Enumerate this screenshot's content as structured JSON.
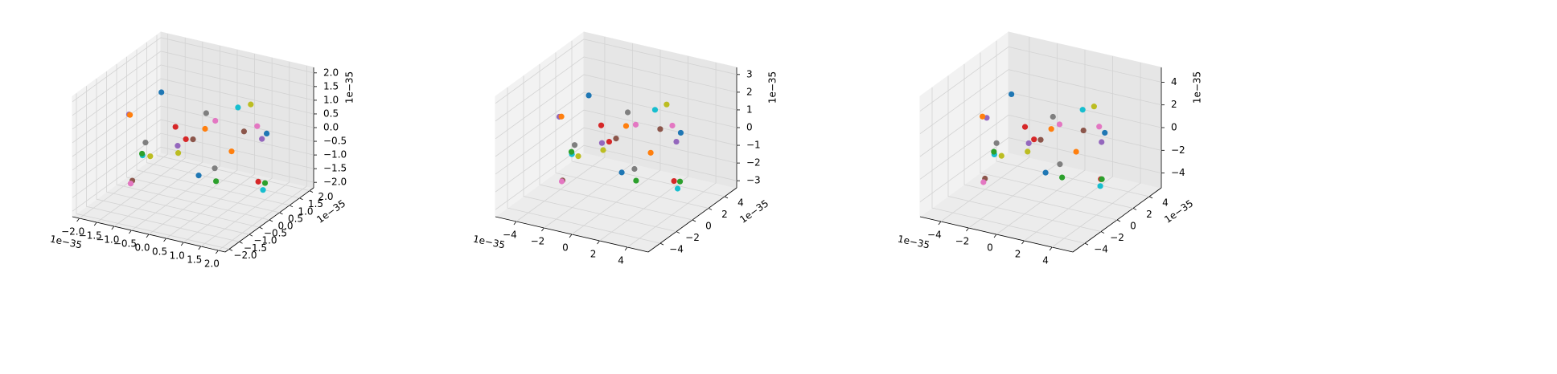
{
  "chart_data": [
    {
      "type": "scatter3d",
      "xlim": [
        -2.2,
        2.2
      ],
      "ylim": [
        -2.2,
        2.2
      ],
      "zlim": [
        -2.2,
        2.2
      ],
      "xticks": [
        {
          "value": -2,
          "label": "−2.0"
        },
        {
          "value": -1.5,
          "label": "−1.5"
        },
        {
          "value": -1,
          "label": "−1.0"
        },
        {
          "value": -0.5,
          "label": "−0.5"
        },
        {
          "value": 0,
          "label": "0.0"
        },
        0.5,
        {
          "value": 1,
          "label": "1.0"
        },
        1.5,
        {
          "value": 2,
          "label": "2.0"
        }
      ],
      "yticks": [
        {
          "value": -2,
          "label": "−2.0"
        },
        {
          "value": -1.5,
          "label": "−1.5"
        },
        {
          "value": -1,
          "label": "−1.0"
        },
        {
          "value": -0.5,
          "label": "−0.5"
        },
        {
          "value": 0,
          "label": "0.0"
        },
        0.5,
        {
          "value": 1,
          "label": "1.0"
        },
        1.5,
        {
          "value": 2,
          "label": "2.0"
        }
      ],
      "zticks": [
        {
          "value": -2,
          "label": "−2.0"
        },
        {
          "value": -1.5,
          "label": "−1.5"
        },
        {
          "value": -1,
          "label": "−1.0"
        },
        {
          "value": -0.5,
          "label": "−0.5"
        },
        {
          "value": 0,
          "label": "0.0"
        },
        0.5,
        {
          "value": 1,
          "label": "1.0"
        },
        1.5,
        {
          "value": 2,
          "label": "2.0"
        }
      ],
      "x_offset_text": "1e−35",
      "y_offset_text": "1e−35",
      "z_offset_text": "1e−35",
      "series": [
        {
          "color": "#1f77b4",
          "x": [
            -1.2,
            0.8,
            1.6
          ],
          "y": [
            0.5,
            -1.1,
            0.9
          ],
          "z": [
            1.2,
            -0.4,
            0.3
          ]
        },
        {
          "color": "#ff7f0e",
          "x": [
            0.3,
            -1.7,
            1.1
          ],
          "y": [
            1.4,
            -0.2,
            -1.3
          ],
          "z": [
            -1.0,
            0.6,
            1.5
          ]
        },
        {
          "color": "#2ca02c",
          "x": [
            -0.6,
            1.9,
            0.2
          ],
          "y": [
            -1.5,
            0.3,
            0.8
          ],
          "z": [
            0.2,
            -1.1,
            -1.8
          ]
        },
        {
          "color": "#d62728",
          "x": [
            1.3,
            -0.9,
            -0.1
          ],
          "y": [
            1.0,
            1.2,
            -0.7
          ],
          "z": [
            -1.6,
            -0.8,
            0.9
          ]
        },
        {
          "color": "#9467bd",
          "x": [
            -1.9,
            0.6,
            1.0
          ],
          "y": [
            0.1,
            -1.8,
            1.7
          ],
          "z": [
            0.4,
            1.0,
            -0.5
          ]
        },
        {
          "color": "#8c564b",
          "x": [
            0.0,
            -1.4,
            1.7
          ],
          "y": [
            0.0,
            -0.6,
            -0.4
          ],
          "z": [
            0.1,
            -1.5,
            1.1
          ]
        },
        {
          "color": "#e377c2",
          "x": [
            -0.4,
            1.5,
            -1.1
          ],
          "y": [
            1.8,
            0.6,
            -1.2
          ],
          "z": [
            -0.3,
            0.7,
            -1.2
          ]
        },
        {
          "color": "#7f7f7f",
          "x": [
            0.9,
            -0.3,
            -1.6
          ],
          "y": [
            -0.9,
            1.6,
            0.4
          ],
          "z": [
            1.8,
            -1.9,
            -0.7
          ]
        },
        {
          "color": "#bcbd22",
          "x": [
            -1.0,
            1.2,
            0.5
          ],
          "y": [
            -0.4,
            0.8,
            -1.6
          ],
          "z": [
            -0.6,
            1.3,
            0.6
          ]
        },
        {
          "color": "#17becf",
          "x": [
            0.6,
            -0.7,
            1.9
          ],
          "y": [
            1.2,
            -1.3,
            0.2
          ],
          "z": [
            0.8,
            0.0,
            -1.3
          ]
        }
      ]
    },
    {
      "type": "scatter3d",
      "xlim": [
        -5.5,
        5.5
      ],
      "ylim": [
        -5.5,
        5.5
      ],
      "zlim": [
        -3.4,
        3.4
      ],
      "xticks": [
        {
          "value": -4,
          "label": "−4"
        },
        {
          "value": -2,
          "label": "−2"
        },
        0,
        2,
        4
      ],
      "yticks": [
        {
          "value": -4,
          "label": "−4"
        },
        {
          "value": -2,
          "label": "−2"
        },
        0,
        2,
        4
      ],
      "zticks": [
        {
          "value": -3,
          "label": "−3"
        },
        {
          "value": -2,
          "label": "−2"
        },
        {
          "value": -1,
          "label": "−1"
        },
        0,
        1,
        2,
        3
      ],
      "x_offset_text": "1e−35",
      "y_offset_text": "1e−35",
      "z_offset_text": "1e−35",
      "series": [
        {
          "color": "#1f77b4",
          "x": [
            -2.6,
            1.8,
            3.5
          ],
          "y": [
            1.1,
            -2.4,
            2.0
          ],
          "z": [
            1.8,
            -0.6,
            0.5
          ]
        },
        {
          "color": "#ff7f0e",
          "x": [
            0.7,
            -3.7,
            2.4
          ],
          "y": [
            3.1,
            -0.4,
            -2.9
          ],
          "z": [
            -1.5,
            0.9,
            2.3
          ]
        },
        {
          "color": "#2ca02c",
          "x": [
            -1.3,
            4.2,
            0.4
          ],
          "y": [
            -3.3,
            0.7,
            1.8
          ],
          "z": [
            0.3,
            -1.7,
            -2.7
          ]
        },
        {
          "color": "#d62728",
          "x": [
            2.9,
            -2.0,
            -0.2
          ],
          "y": [
            2.2,
            2.6,
            -1.5
          ],
          "z": [
            -2.4,
            -1.2,
            1.4
          ]
        },
        {
          "color": "#9467bd",
          "x": [
            -4.2,
            1.3,
            2.2
          ],
          "y": [
            0.2,
            -4.0,
            3.7
          ],
          "z": [
            0.6,
            1.5,
            -0.8
          ]
        },
        {
          "color": "#8c564b",
          "x": [
            0.0,
            -3.1,
            3.7
          ],
          "y": [
            0.0,
            -1.3,
            -0.9
          ],
          "z": [
            0.2,
            -2.3,
            1.7
          ]
        },
        {
          "color": "#e377c2",
          "x": [
            -0.9,
            3.3,
            -2.4
          ],
          "y": [
            4.0,
            1.3,
            -2.6
          ],
          "z": [
            -0.5,
            1.1,
            -1.8
          ]
        },
        {
          "color": "#7f7f7f",
          "x": [
            2.0,
            -0.7,
            -3.5
          ],
          "y": [
            -2.0,
            3.5,
            0.9
          ],
          "z": [
            2.7,
            -2.8,
            -1.1
          ]
        },
        {
          "color": "#bcbd22",
          "x": [
            -2.2,
            2.6,
            1.1
          ],
          "y": [
            -0.9,
            1.8,
            -3.5
          ],
          "z": [
            -0.9,
            2.0,
            0.9
          ]
        },
        {
          "color": "#17becf",
          "x": [
            1.3,
            -1.5,
            4.2
          ],
          "y": [
            2.6,
            -2.9,
            0.4
          ],
          "z": [
            1.2,
            0.0,
            -2.0
          ]
        }
      ]
    },
    {
      "type": "scatter3d",
      "xlim": [
        -5.5,
        5.5
      ],
      "ylim": [
        -5.5,
        5.5
      ],
      "zlim": [
        -5.3,
        5.3
      ],
      "xticks": [
        {
          "value": -4,
          "label": "−4"
        },
        {
          "value": -2,
          "label": "−2"
        },
        0,
        2,
        4
      ],
      "yticks": [
        {
          "value": -4,
          "label": "−4"
        },
        {
          "value": -2,
          "label": "−2"
        },
        0,
        2,
        4
      ],
      "zticks": [
        {
          "value": -4,
          "label": "−4"
        },
        {
          "value": -2,
          "label": "−2"
        },
        0,
        2,
        4
      ],
      "x_offset_text": "1e−35",
      "y_offset_text": "1e−35",
      "z_offset_text": "1e−35",
      "series": [
        {
          "color": "#1f77b4",
          "x": [
            -2.8,
            1.8,
            3.4
          ],
          "y": [
            1.2,
            -2.5,
            2.1
          ],
          "z": [
            2.8,
            -0.9,
            0.7
          ]
        },
        {
          "color": "#ff7f0e",
          "x": [
            0.7,
            -3.9,
            2.5
          ],
          "y": [
            3.2,
            -0.5,
            -3.0
          ],
          "z": [
            -2.3,
            1.4,
            3.4
          ]
        },
        {
          "color": "#2ca02c",
          "x": [
            -1.4,
            4.0,
            0.5
          ],
          "y": [
            -3.4,
            0.7,
            1.8
          ],
          "z": [
            0.5,
            -2.5,
            -3.9
          ]
        },
        {
          "color": "#d62728",
          "x": [
            3.0,
            -2.1,
            -0.2
          ],
          "y": [
            2.3,
            2.8,
            -1.6
          ],
          "z": [
            -3.6,
            -1.8,
            2.1
          ]
        },
        {
          "color": "#9467bd",
          "x": [
            -4.0,
            1.4,
            2.3
          ],
          "y": [
            0.2,
            -3.9,
            3.6
          ],
          "z": [
            0.9,
            2.3,
            -1.2
          ]
        },
        {
          "color": "#8c564b",
          "x": [
            0.0,
            -3.2,
            3.6
          ],
          "y": [
            0.0,
            -1.4,
            -0.9
          ],
          "z": [
            0.2,
            -3.4,
            2.5
          ]
        },
        {
          "color": "#e377c2",
          "x": [
            -0.9,
            3.4,
            -2.5
          ],
          "y": [
            3.9,
            1.4,
            -2.8
          ],
          "z": [
            -0.7,
            1.6,
            -2.8
          ]
        },
        {
          "color": "#7f7f7f",
          "x": [
            2.1,
            -0.7,
            -3.7
          ],
          "y": [
            -2.1,
            3.6,
            0.9
          ],
          "z": [
            3.9,
            -4.0,
            -1.6
          ]
        },
        {
          "color": "#bcbd22",
          "x": [
            -2.3,
            2.8,
            1.2
          ],
          "y": [
            -0.9,
            1.8,
            -3.7
          ],
          "z": [
            -1.4,
            3.0,
            1.4
          ]
        },
        {
          "color": "#17becf",
          "x": [
            1.4,
            -1.6,
            4.0
          ],
          "y": [
            2.8,
            -3.0,
            0.5
          ],
          "z": [
            1.8,
            0.0,
            -3.0
          ]
        }
      ]
    }
  ]
}
